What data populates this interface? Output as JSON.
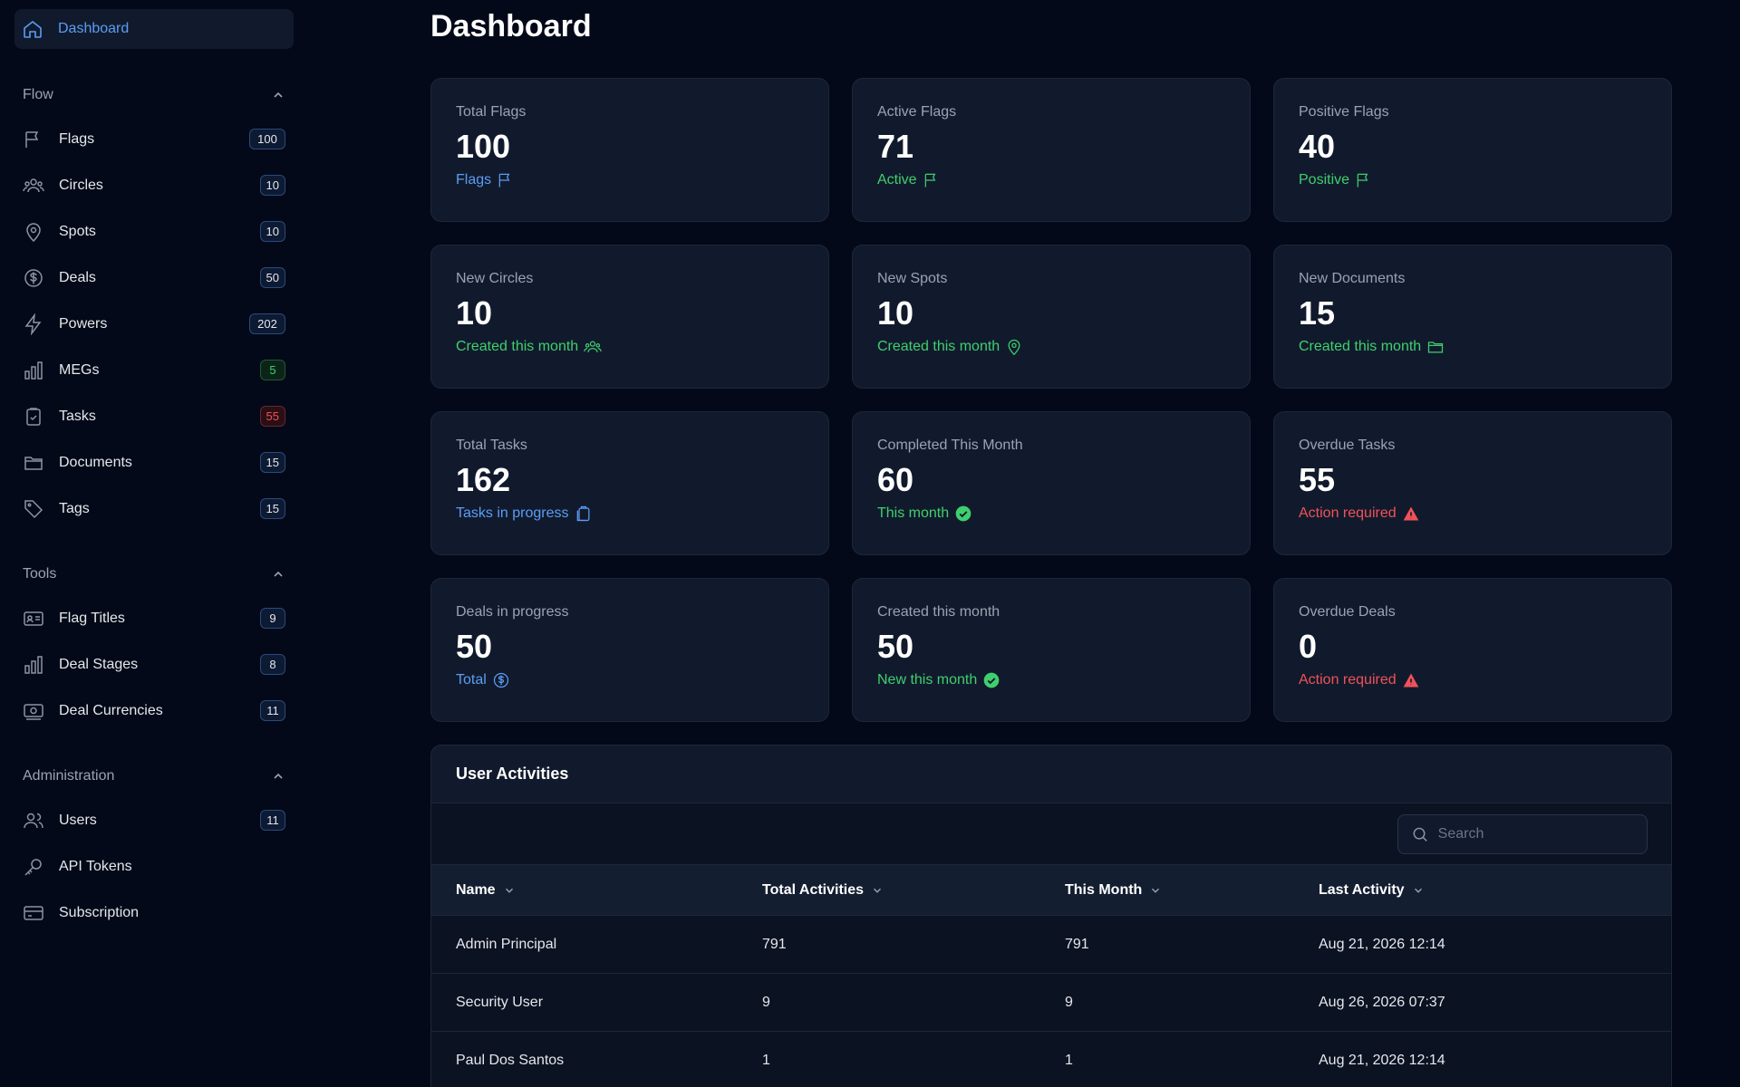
{
  "sidebar": {
    "dashboard": "Dashboard",
    "sections": {
      "flow": {
        "title": "Flow",
        "items": [
          {
            "label": "Flags",
            "count": "100"
          },
          {
            "label": "Circles",
            "count": "10"
          },
          {
            "label": "Spots",
            "count": "10"
          },
          {
            "label": "Deals",
            "count": "50"
          },
          {
            "label": "Powers",
            "count": "202"
          },
          {
            "label": "MEGs",
            "count": "5"
          },
          {
            "label": "Tasks",
            "count": "55"
          },
          {
            "label": "Documents",
            "count": "15"
          },
          {
            "label": "Tags",
            "count": "15"
          }
        ]
      },
      "tools": {
        "title": "Tools",
        "items": [
          {
            "label": "Flag Titles",
            "count": "9"
          },
          {
            "label": "Deal Stages",
            "count": "8"
          },
          {
            "label": "Deal Currencies",
            "count": "11"
          }
        ]
      },
      "admin": {
        "title": "Administration",
        "items": [
          {
            "label": "Users",
            "count": "11"
          },
          {
            "label": "API Tokens"
          },
          {
            "label": "Subscription"
          }
        ]
      }
    }
  },
  "page": {
    "title": "Dashboard"
  },
  "cards": [
    {
      "title": "Total Flags",
      "value": "100",
      "sub": "Flags",
      "icon": "flag-icon",
      "color": "#5b9df5"
    },
    {
      "title": "Active Flags",
      "value": "71",
      "sub": "Active",
      "icon": "flag-icon",
      "color": "#3fcf6e"
    },
    {
      "title": "Positive Flags",
      "value": "40",
      "sub": "Positive",
      "icon": "flag-icon",
      "color": "#3fcf6e"
    },
    {
      "title": "New Circles",
      "value": "10",
      "sub": "Created this month",
      "icon": "users-icon",
      "color": "#3fcf6e"
    },
    {
      "title": "New Spots",
      "value": "10",
      "sub": "Created this month",
      "icon": "map-pin-icon",
      "color": "#3fcf6e"
    },
    {
      "title": "New Documents",
      "value": "15",
      "sub": "Created this month",
      "icon": "folder-icon",
      "color": "#3fcf6e"
    },
    {
      "title": "Total Tasks",
      "value": "162",
      "sub": "Tasks in progress",
      "icon": "clipboard-icon",
      "color": "#5b9df5"
    },
    {
      "title": "Completed This Month",
      "value": "60",
      "sub": "This month",
      "icon": "check-circle-icon",
      "color": "#3fcf6e"
    },
    {
      "title": "Overdue Tasks",
      "value": "55",
      "sub": "Action required",
      "icon": "warning-icon",
      "color": "#f0525a"
    },
    {
      "title": "Deals in progress",
      "value": "50",
      "sub": "Total",
      "icon": "dollar-icon",
      "color": "#5b9df5"
    },
    {
      "title": "Created this month",
      "value": "50",
      "sub": "New this month",
      "icon": "check-circle-icon",
      "color": "#3fcf6e"
    },
    {
      "title": "Overdue Deals",
      "value": "0",
      "sub": "Action required",
      "icon": "warning-icon",
      "color": "#f0525a"
    }
  ],
  "activities": {
    "title": "User Activities",
    "search_placeholder": "Search",
    "columns": [
      "Name",
      "Total Activities",
      "This Month",
      "Last Activity"
    ],
    "rows": [
      [
        "Admin Principal",
        "791",
        "791",
        "Aug 21, 2026 12:14"
      ],
      [
        "Security User",
        "9",
        "9",
        "Aug 26, 2026 07:37"
      ],
      [
        "Paul Dos Santos",
        "1",
        "1",
        "Aug 21, 2026 12:14"
      ]
    ]
  }
}
